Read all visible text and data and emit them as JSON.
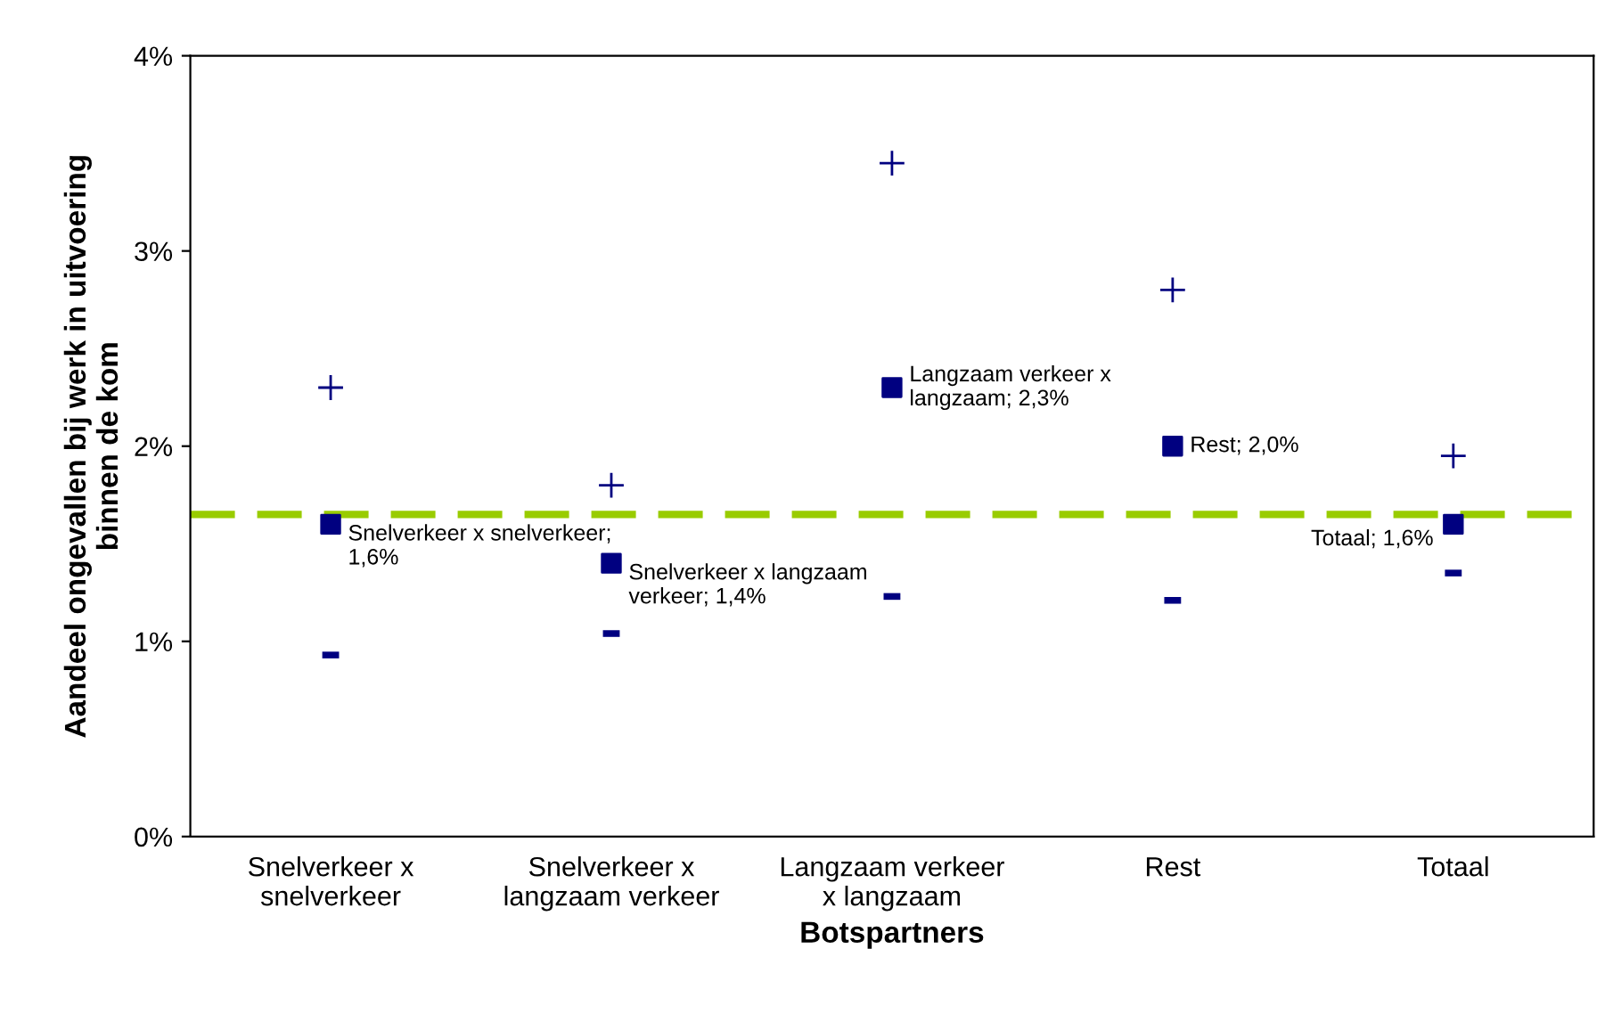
{
  "chart_data": {
    "type": "scatter",
    "xlabel": "Botspartners",
    "ylabel": "Aandeel ongevallen bij werk in uitvoering\nbinnen de kom",
    "categories": [
      "Snelverkeer x\nsnelverkeer",
      "Snelverkeer x\nlangzaam verkeer",
      "Langzaam verkeer\nx langzaam",
      "Rest",
      "Totaal"
    ],
    "series": [
      {
        "color": "#000080",
        "marker": "square",
        "values": [
          1.6,
          1.4,
          2.3,
          2.0,
          1.6
        ],
        "value_labels": [
          "Snelverkeer x snelverkeer;\n1,6%",
          "Snelverkeer x langzaam\nverkeer; 1,4%",
          "Langzaam verkeer x\nlangzaam; 2,3%",
          "Rest; 2,0%",
          "Totaal; 1,6%"
        ]
      },
      {
        "color": "#000080",
        "marker": "cross",
        "values": [
          2.3,
          1.8,
          3.45,
          2.8,
          1.95
        ]
      },
      {
        "color": "#000080",
        "values": [
          0.93,
          1.04,
          1.23,
          1.21,
          1.35
        ]
      }
    ],
    "ylim": [
      0,
      4
    ],
    "yticks": [
      {
        "value": 0,
        "label": "0%"
      },
      {
        "value": 1,
        "label": "1%"
      },
      {
        "value": 2,
        "label": "2%"
      },
      {
        "value": 3,
        "label": "3%"
      },
      {
        "value": 4,
        "label": "4%"
      }
    ],
    "ref_lines": [
      {
        "axis": "y",
        "value": 1.65,
        "label": null,
        "color": "#99cc00",
        "line_style": "dashed"
      }
    ],
    "grid": false,
    "legend": false
  }
}
